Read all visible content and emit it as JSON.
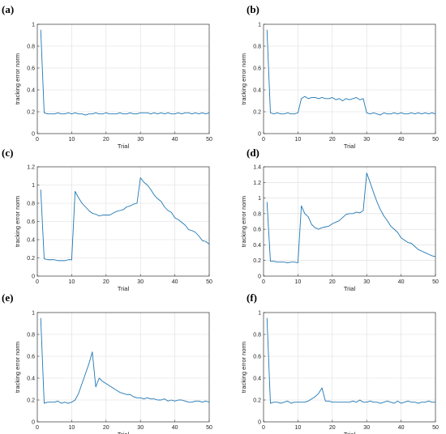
{
  "chart_data": [
    {
      "type": "line",
      "panel_label": "(a)",
      "xlabel": "Trial",
      "ylabel": "tracking error norm",
      "xlim": [
        0,
        50
      ],
      "ylim": [
        0,
        1
      ],
      "xticks": [
        0,
        10,
        20,
        30,
        40,
        50
      ],
      "yticks": [
        0,
        0.2,
        0.4,
        0.6,
        0.8,
        1
      ],
      "grid": true,
      "color": "#1f77b4",
      "series": [
        {
          "x": [
            1,
            2,
            3,
            4,
            5,
            6,
            7,
            8,
            9,
            10,
            11,
            12,
            13,
            14,
            15,
            16,
            17,
            18,
            19,
            20,
            21,
            22,
            23,
            24,
            25,
            26,
            27,
            28,
            29,
            30,
            31,
            32,
            33,
            34,
            35,
            36,
            37,
            38,
            39,
            40,
            41,
            42,
            43,
            44,
            45,
            46,
            47,
            48,
            49,
            50
          ],
          "values": [
            0.95,
            0.19,
            0.18,
            0.18,
            0.18,
            0.19,
            0.18,
            0.18,
            0.19,
            0.18,
            0.19,
            0.18,
            0.18,
            0.17,
            0.18,
            0.18,
            0.19,
            0.18,
            0.18,
            0.19,
            0.18,
            0.18,
            0.18,
            0.19,
            0.18,
            0.18,
            0.19,
            0.18,
            0.18,
            0.19,
            0.19,
            0.19,
            0.18,
            0.19,
            0.18,
            0.19,
            0.18,
            0.19,
            0.18,
            0.18,
            0.19,
            0.18,
            0.19,
            0.19,
            0.18,
            0.19,
            0.18,
            0.19,
            0.18,
            0.19
          ]
        }
      ]
    },
    {
      "type": "line",
      "panel_label": "(b)",
      "xlabel": "Trial",
      "ylabel": "tracking error norm",
      "xlim": [
        0,
        50
      ],
      "ylim": [
        0,
        1
      ],
      "xticks": [
        0,
        10,
        20,
        30,
        40,
        50
      ],
      "yticks": [
        0,
        0.2,
        0.4,
        0.6,
        0.8,
        1
      ],
      "grid": true,
      "color": "#1f77b4",
      "series": [
        {
          "x": [
            1,
            2,
            3,
            4,
            5,
            6,
            7,
            8,
            9,
            10,
            11,
            12,
            13,
            14,
            15,
            16,
            17,
            18,
            19,
            20,
            21,
            22,
            23,
            24,
            25,
            26,
            27,
            28,
            29,
            30,
            31,
            32,
            33,
            34,
            35,
            36,
            37,
            38,
            39,
            40,
            41,
            42,
            43,
            44,
            45,
            46,
            47,
            48,
            49,
            50
          ],
          "values": [
            0.95,
            0.19,
            0.18,
            0.19,
            0.18,
            0.18,
            0.19,
            0.18,
            0.18,
            0.19,
            0.32,
            0.34,
            0.32,
            0.33,
            0.33,
            0.32,
            0.33,
            0.32,
            0.32,
            0.33,
            0.31,
            0.32,
            0.3,
            0.32,
            0.31,
            0.32,
            0.33,
            0.31,
            0.32,
            0.19,
            0.18,
            0.19,
            0.18,
            0.17,
            0.19,
            0.18,
            0.18,
            0.19,
            0.18,
            0.19,
            0.18,
            0.18,
            0.19,
            0.18,
            0.19,
            0.18,
            0.19,
            0.18,
            0.19,
            0.18
          ]
        }
      ]
    },
    {
      "type": "line",
      "panel_label": "(c)",
      "xlabel": "Trial",
      "ylabel": "tracking error norm",
      "xlim": [
        0,
        50
      ],
      "ylim": [
        0,
        1.2
      ],
      "xticks": [
        0,
        10,
        20,
        30,
        40,
        50
      ],
      "yticks": [
        0,
        0.2,
        0.4,
        0.6,
        0.8,
        1,
        1.2
      ],
      "grid": true,
      "color": "#1f77b4",
      "series": [
        {
          "x": [
            1,
            2,
            3,
            4,
            5,
            6,
            7,
            8,
            9,
            10,
            11,
            12,
            13,
            14,
            15,
            16,
            17,
            18,
            19,
            20,
            21,
            22,
            23,
            24,
            25,
            26,
            27,
            28,
            29,
            30,
            31,
            32,
            33,
            34,
            35,
            36,
            37,
            38,
            39,
            40,
            41,
            42,
            43,
            44,
            45,
            46,
            47,
            48,
            49,
            50
          ],
          "values": [
            0.95,
            0.19,
            0.18,
            0.18,
            0.18,
            0.17,
            0.17,
            0.17,
            0.18,
            0.18,
            0.93,
            0.86,
            0.8,
            0.76,
            0.72,
            0.69,
            0.68,
            0.66,
            0.67,
            0.67,
            0.67,
            0.69,
            0.71,
            0.72,
            0.73,
            0.76,
            0.77,
            0.79,
            0.8,
            1.08,
            1.03,
            1.0,
            0.95,
            0.89,
            0.85,
            0.82,
            0.76,
            0.72,
            0.7,
            0.64,
            0.62,
            0.59,
            0.56,
            0.51,
            0.5,
            0.48,
            0.44,
            0.39,
            0.38,
            0.35
          ]
        }
      ]
    },
    {
      "type": "line",
      "panel_label": "(d)",
      "xlabel": "Trial",
      "ylabel": "tracking error norm",
      "xlim": [
        0,
        50
      ],
      "ylim": [
        0,
        1.4
      ],
      "xticks": [
        0,
        10,
        20,
        30,
        40,
        50
      ],
      "yticks": [
        0,
        0.2,
        0.4,
        0.6,
        0.8,
        1,
        1.2,
        1.4
      ],
      "grid": true,
      "color": "#1f77b4",
      "series": [
        {
          "x": [
            1,
            2,
            3,
            4,
            5,
            6,
            7,
            8,
            9,
            10,
            11,
            12,
            13,
            14,
            15,
            16,
            17,
            18,
            19,
            20,
            21,
            22,
            23,
            24,
            25,
            26,
            27,
            28,
            29,
            30,
            31,
            32,
            33,
            34,
            35,
            36,
            37,
            38,
            39,
            40,
            41,
            42,
            43,
            44,
            45,
            46,
            47,
            48,
            49,
            50
          ],
          "values": [
            0.95,
            0.19,
            0.19,
            0.18,
            0.18,
            0.18,
            0.17,
            0.18,
            0.18,
            0.17,
            0.9,
            0.8,
            0.76,
            0.66,
            0.62,
            0.6,
            0.62,
            0.63,
            0.64,
            0.67,
            0.69,
            0.71,
            0.75,
            0.79,
            0.8,
            0.8,
            0.82,
            0.81,
            0.84,
            1.32,
            1.2,
            1.07,
            0.95,
            0.85,
            0.77,
            0.71,
            0.64,
            0.6,
            0.56,
            0.49,
            0.46,
            0.43,
            0.42,
            0.38,
            0.34,
            0.32,
            0.3,
            0.28,
            0.26,
            0.25
          ]
        }
      ]
    },
    {
      "type": "line",
      "panel_label": "(e)",
      "xlabel": "Trial",
      "ylabel": "tracking error norm",
      "xlim": [
        0,
        50
      ],
      "ylim": [
        0,
        1
      ],
      "xticks": [
        0,
        10,
        20,
        30,
        40,
        50
      ],
      "yticks": [
        0,
        0.2,
        0.4,
        0.6,
        0.8,
        1
      ],
      "grid": true,
      "color": "#1f77b4",
      "series": [
        {
          "x": [
            1,
            2,
            3,
            4,
            5,
            6,
            7,
            8,
            9,
            10,
            11,
            12,
            13,
            14,
            15,
            16,
            17,
            18,
            19,
            20,
            21,
            22,
            23,
            24,
            25,
            26,
            27,
            28,
            29,
            30,
            31,
            32,
            33,
            34,
            35,
            36,
            37,
            38,
            39,
            40,
            41,
            42,
            43,
            44,
            45,
            46,
            47,
            48,
            49,
            50
          ],
          "values": [
            0.95,
            0.17,
            0.18,
            0.18,
            0.18,
            0.19,
            0.17,
            0.18,
            0.17,
            0.18,
            0.2,
            0.26,
            0.35,
            0.44,
            0.53,
            0.64,
            0.32,
            0.4,
            0.37,
            0.35,
            0.33,
            0.31,
            0.29,
            0.27,
            0.26,
            0.25,
            0.25,
            0.23,
            0.22,
            0.22,
            0.21,
            0.22,
            0.21,
            0.21,
            0.2,
            0.2,
            0.21,
            0.19,
            0.2,
            0.19,
            0.2,
            0.2,
            0.19,
            0.18,
            0.18,
            0.19,
            0.19,
            0.18,
            0.19,
            0.18
          ]
        }
      ]
    },
    {
      "type": "line",
      "panel_label": "(f)",
      "xlabel": "Trial",
      "ylabel": "tracking error norm",
      "xlim": [
        0,
        50
      ],
      "ylim": [
        0,
        1
      ],
      "xticks": [
        0,
        10,
        20,
        30,
        40,
        50
      ],
      "yticks": [
        0,
        0.2,
        0.4,
        0.6,
        0.8,
        1
      ],
      "grid": true,
      "color": "#1f77b4",
      "series": [
        {
          "x": [
            1,
            2,
            3,
            4,
            5,
            6,
            7,
            8,
            9,
            10,
            11,
            12,
            13,
            14,
            15,
            16,
            17,
            18,
            19,
            20,
            21,
            22,
            23,
            24,
            25,
            26,
            27,
            28,
            29,
            30,
            31,
            32,
            33,
            34,
            35,
            36,
            37,
            38,
            39,
            40,
            41,
            42,
            43,
            44,
            45,
            46,
            47,
            48,
            49,
            50
          ],
          "values": [
            0.95,
            0.17,
            0.18,
            0.18,
            0.17,
            0.18,
            0.19,
            0.17,
            0.18,
            0.18,
            0.18,
            0.18,
            0.19,
            0.21,
            0.23,
            0.26,
            0.31,
            0.19,
            0.19,
            0.18,
            0.18,
            0.18,
            0.18,
            0.18,
            0.18,
            0.19,
            0.18,
            0.2,
            0.18,
            0.18,
            0.19,
            0.18,
            0.18,
            0.17,
            0.18,
            0.19,
            0.18,
            0.17,
            0.19,
            0.17,
            0.18,
            0.19,
            0.18,
            0.18,
            0.17,
            0.18,
            0.18,
            0.19,
            0.18,
            0.18
          ]
        }
      ]
    }
  ]
}
